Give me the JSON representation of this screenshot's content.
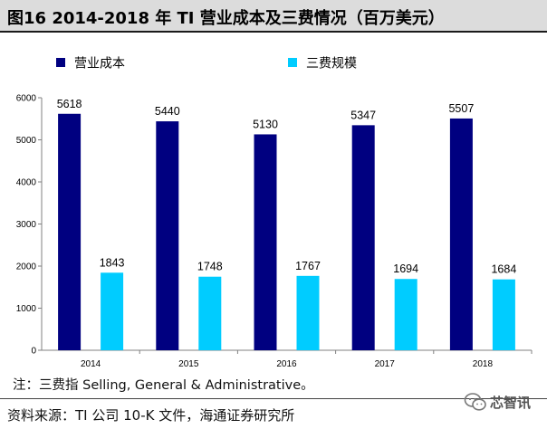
{
  "title": "图16 2014-2018 年 TI 营业成本及三费情况（百万美元）",
  "note": "注：三费指 Selling, General & Administrative。",
  "source": "资料来源：TI 公司 10-K 文件，海通证券研究所",
  "watermark": {
    "text": "芯智讯",
    "icon": "wechat-icon"
  },
  "colors": {
    "series1": "#000080",
    "series2": "#00ccff",
    "axis": "#808080"
  },
  "chart_data": {
    "type": "bar",
    "title": "图16 2014-2018 年 TI 营业成本及三费情况（百万美元）",
    "categories": [
      "2014",
      "2015",
      "2016",
      "2017",
      "2018"
    ],
    "series": [
      {
        "name": "营业成本",
        "values": [
          5618,
          5440,
          5130,
          5347,
          5507
        ],
        "color": "#000080"
      },
      {
        "name": "三费规模",
        "values": [
          1843,
          1748,
          1767,
          1694,
          1684
        ],
        "color": "#00ccff"
      }
    ],
    "ylim": [
      0,
      6000
    ],
    "yticks": [
      0,
      1000,
      2000,
      3000,
      4000,
      5000,
      6000
    ],
    "xlabel": "",
    "ylabel": "",
    "grid": false,
    "legend": "top-left",
    "data_labels": true
  }
}
